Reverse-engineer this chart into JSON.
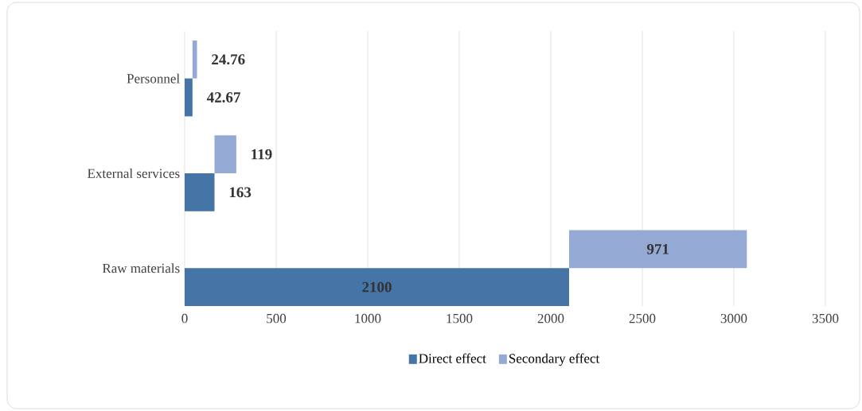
{
  "chart_data": {
    "type": "bar",
    "orientation": "horizontal",
    "categories": [
      "Personnel",
      "External services",
      "Raw materials"
    ],
    "series": [
      {
        "name": "Direct effect",
        "color": "#4574a7",
        "values": [
          42.67,
          163,
          2100
        ]
      },
      {
        "name": "Secondary effect",
        "color": "#94a9d3",
        "values": [
          24.76,
          119,
          971
        ],
        "base": [
          42.67,
          163,
          2100
        ]
      }
    ],
    "xlim": [
      0,
      3500
    ],
    "xticks": [
      0,
      500,
      1000,
      1500,
      2000,
      2500,
      3000,
      3500
    ],
    "grid": "x",
    "legend": "bottom",
    "data_labels": true
  }
}
